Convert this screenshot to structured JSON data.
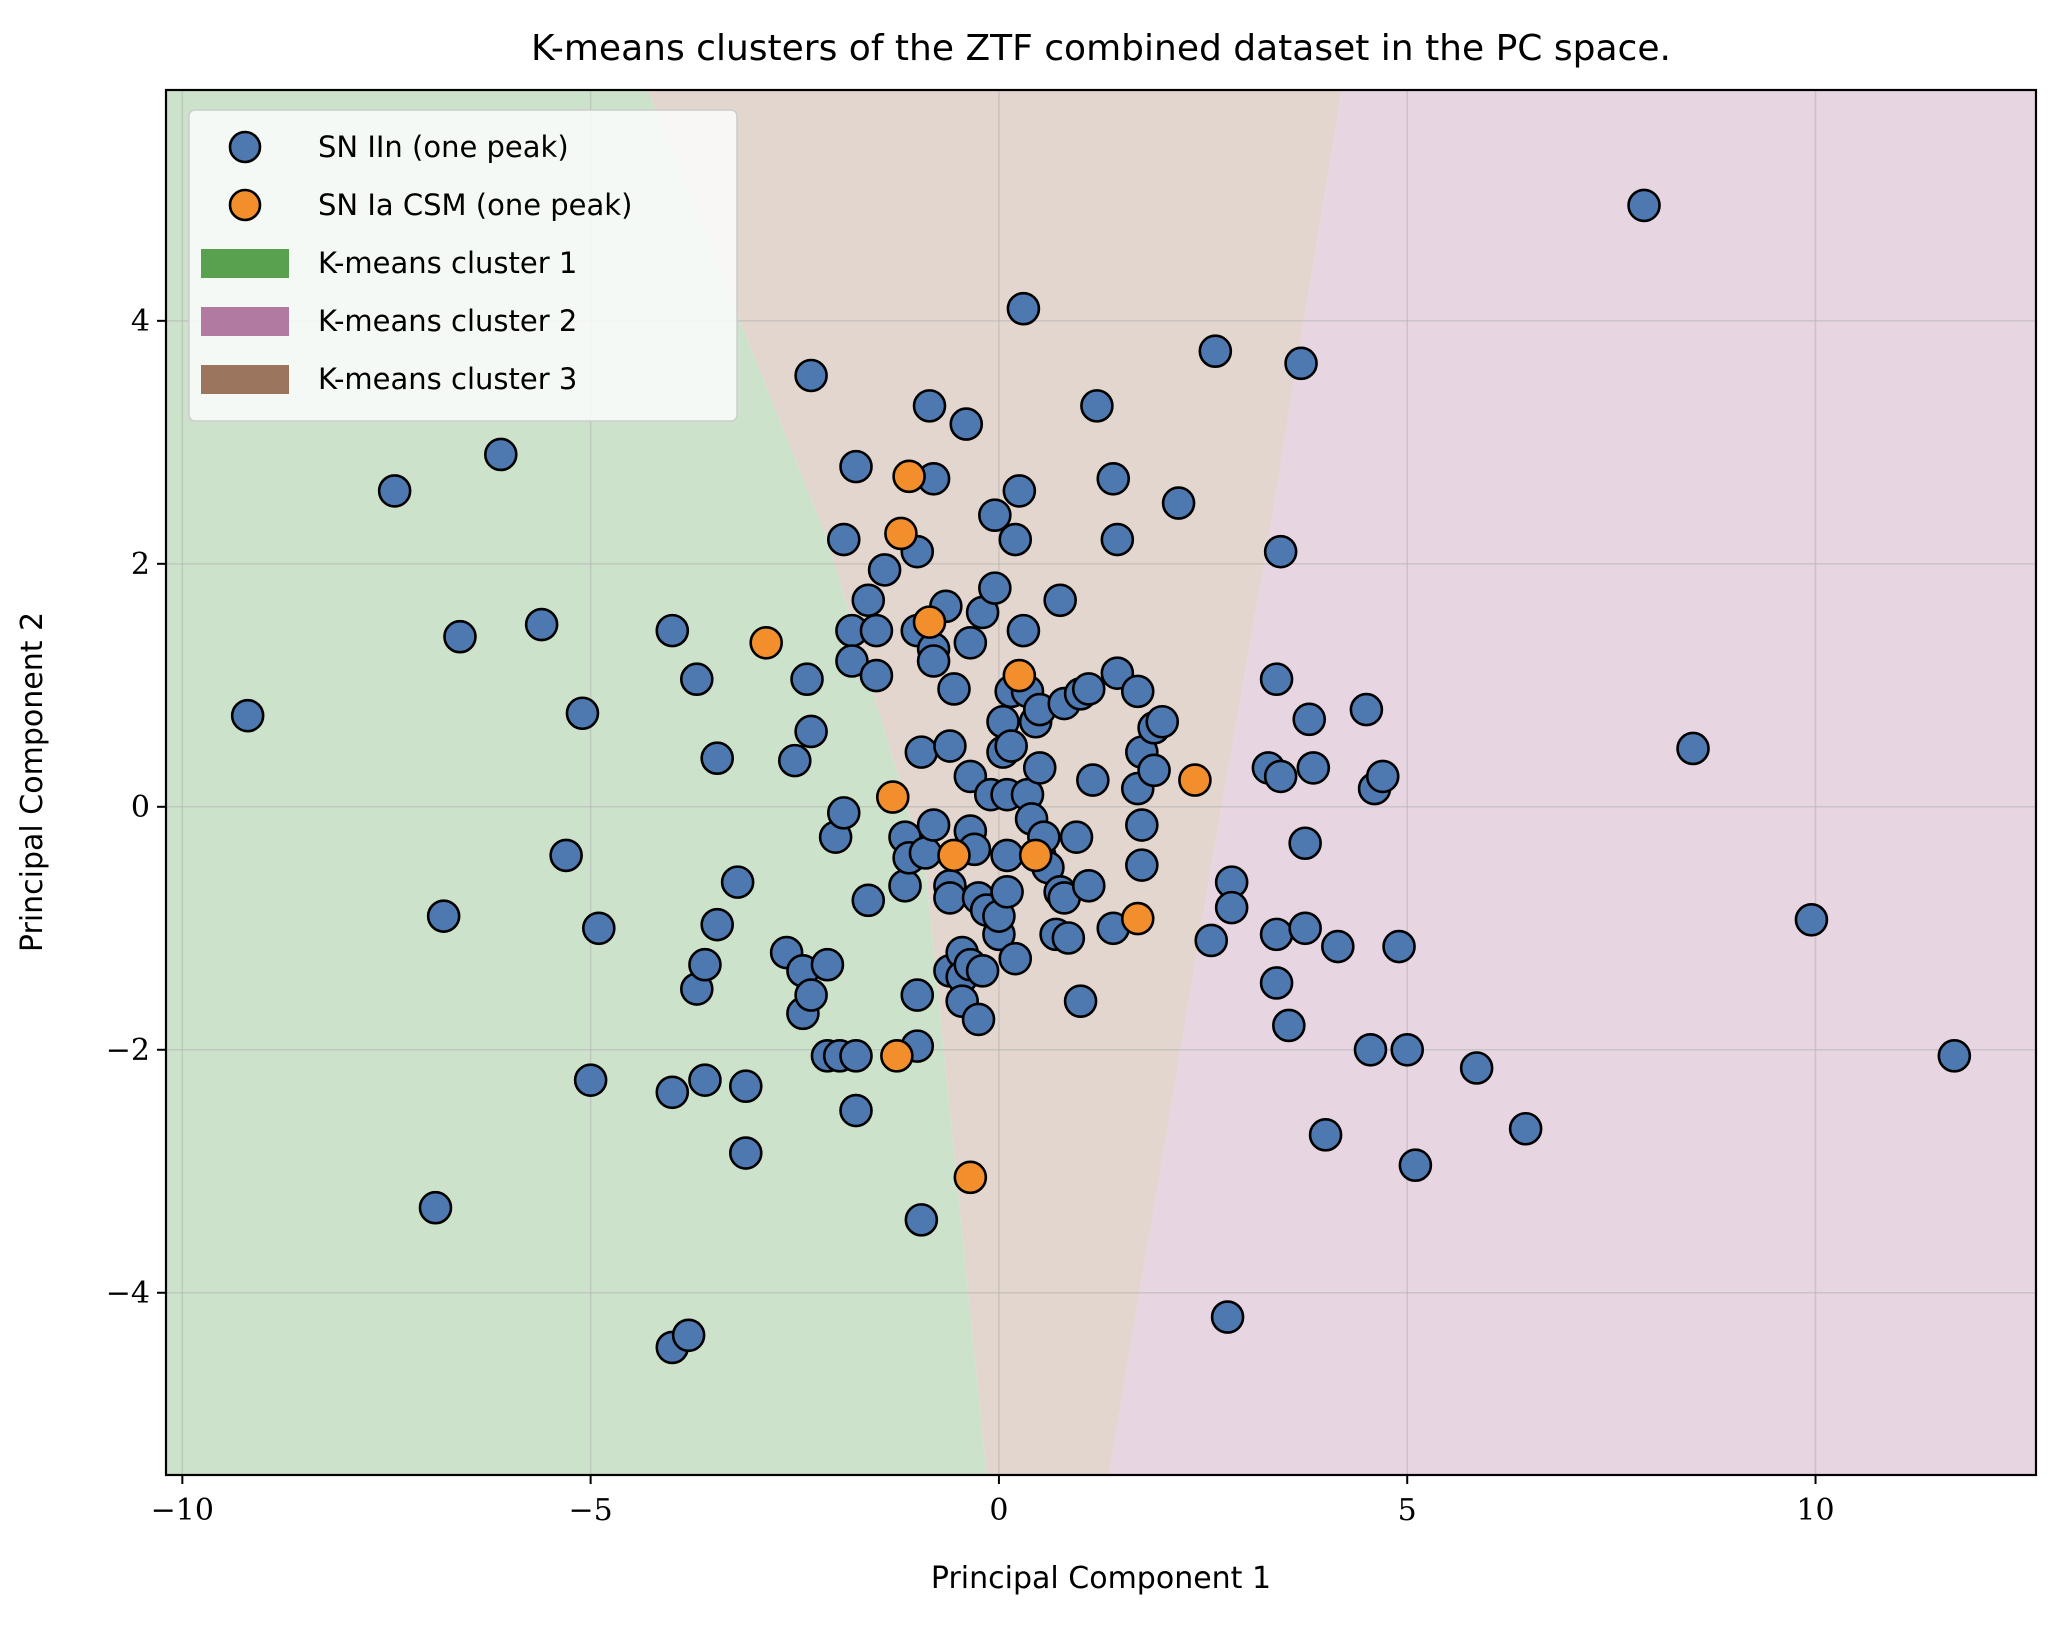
{
  "chart_data": {
    "type": "scatter",
    "title": "K-means clusters of the ZTF combined dataset in the PC space.",
    "xlabel": "Principal Component 1",
    "ylabel": "Principal Component 2",
    "xlim": [
      -10.2,
      12.7
    ],
    "ylim": [
      -5.5,
      5.9
    ],
    "xticks": [
      -10,
      -5,
      0,
      5,
      10
    ],
    "yticks": [
      -4,
      -2,
      0,
      2,
      4
    ],
    "xtick_labels": [
      "−10",
      "−5",
      "0",
      "5",
      "10"
    ],
    "ytick_labels": [
      "−4",
      "−2",
      "0",
      "2",
      "4"
    ],
    "grid": true,
    "legend_position": "top-left",
    "legend": [
      {
        "label": "SN IIn (one peak)",
        "kind": "marker",
        "color": "#4e78b0"
      },
      {
        "label": "SN Ia CSM (one peak)",
        "kind": "marker",
        "color": "#f28e2b"
      },
      {
        "label": "K-means cluster 1",
        "kind": "patch",
        "color": "#59a14f"
      },
      {
        "label": "K-means cluster 2",
        "kind": "patch",
        "color": "#b07aa1"
      },
      {
        "label": "K-means cluster 3",
        "kind": "patch",
        "color": "#9c755f"
      }
    ],
    "regions": [
      {
        "name": "K-means cluster 1",
        "color": "#cde2cb",
        "polygon": [
          [
            -10.2,
            5.9
          ],
          [
            -4.3,
            5.9
          ],
          [
            -2.1,
            2.2
          ],
          [
            -0.9,
            -0.5
          ],
          [
            -0.15,
            -5.5
          ],
          [
            -10.2,
            -5.5
          ]
        ]
      },
      {
        "name": "K-means cluster 3",
        "color": "#e2d6ce",
        "polygon": [
          [
            -4.3,
            5.9
          ],
          [
            4.2,
            5.9
          ],
          [
            3.3,
            2.2
          ],
          [
            2.6,
            -0.5
          ],
          [
            1.35,
            -5.5
          ],
          [
            -0.15,
            -5.5
          ],
          [
            -0.9,
            -0.5
          ],
          [
            -2.1,
            2.2
          ]
        ]
      },
      {
        "name": "K-means cluster 2",
        "color": "#e7d5e1",
        "polygon": [
          [
            4.2,
            5.9
          ],
          [
            12.7,
            5.9
          ],
          [
            12.7,
            -5.5
          ],
          [
            1.35,
            -5.5
          ],
          [
            2.6,
            -0.5
          ],
          [
            3.3,
            2.2
          ]
        ]
      }
    ],
    "series": [
      {
        "name": "SN IIn (one peak)",
        "color": "#4e78b0",
        "points": [
          [
            -9.2,
            0.75
          ],
          [
            -7.4,
            2.6
          ],
          [
            -6.9,
            -3.3
          ],
          [
            -6.8,
            -0.9
          ],
          [
            -6.6,
            1.4
          ],
          [
            -6.1,
            2.9
          ],
          [
            -5.6,
            1.5
          ],
          [
            -5.3,
            -0.4
          ],
          [
            -5.1,
            0.77
          ],
          [
            -5.0,
            -2.25
          ],
          [
            -4.9,
            -1.0
          ],
          [
            -4.0,
            1.45
          ],
          [
            -4.0,
            -2.35
          ],
          [
            -4.0,
            -4.45
          ],
          [
            -3.8,
            -4.35
          ],
          [
            -3.7,
            -1.5
          ],
          [
            -3.7,
            1.05
          ],
          [
            -3.6,
            -1.3
          ],
          [
            -3.6,
            -2.25
          ],
          [
            -3.45,
            0.4
          ],
          [
            -3.45,
            -0.97
          ],
          [
            -3.2,
            -0.62
          ],
          [
            -3.1,
            -2.3
          ],
          [
            -3.1,
            -2.85
          ],
          [
            -2.6,
            -1.2
          ],
          [
            -2.5,
            0.38
          ],
          [
            -2.4,
            -1.35
          ],
          [
            -2.4,
            -1.7
          ],
          [
            -2.35,
            1.05
          ],
          [
            -2.3,
            3.55
          ],
          [
            -2.3,
            0.62
          ],
          [
            -2.3,
            -1.55
          ],
          [
            -2.1,
            -2.05
          ],
          [
            -2.1,
            -1.3
          ],
          [
            -2.0,
            -0.25
          ],
          [
            -1.95,
            -2.05
          ],
          [
            -1.9,
            -0.05
          ],
          [
            -1.9,
            2.2
          ],
          [
            -1.8,
            1.45
          ],
          [
            -1.8,
            1.2
          ],
          [
            -1.75,
            -2.05
          ],
          [
            -1.75,
            -2.5
          ],
          [
            -1.75,
            2.8
          ],
          [
            -1.6,
            1.7
          ],
          [
            -1.6,
            -0.77
          ],
          [
            -1.5,
            1.45
          ],
          [
            -1.5,
            1.08
          ],
          [
            -1.4,
            1.95
          ],
          [
            -1.15,
            -0.25
          ],
          [
            -1.15,
            -0.65
          ],
          [
            -1.1,
            -0.42
          ],
          [
            -1.0,
            2.1
          ],
          [
            -1.0,
            1.45
          ],
          [
            -1.0,
            -1.55
          ],
          [
            -1.0,
            -1.97
          ],
          [
            -0.95,
            -3.4
          ],
          [
            -0.95,
            0.45
          ],
          [
            -0.9,
            -0.38
          ],
          [
            -0.85,
            3.3
          ],
          [
            -0.8,
            2.7
          ],
          [
            -0.8,
            1.3
          ],
          [
            -0.8,
            1.2
          ],
          [
            -0.8,
            -0.15
          ],
          [
            -0.65,
            1.65
          ],
          [
            -0.6,
            -0.65
          ],
          [
            -0.6,
            -0.75
          ],
          [
            -0.6,
            -1.35
          ],
          [
            -0.6,
            0.5
          ],
          [
            -0.55,
            0.97
          ],
          [
            -0.45,
            -1.2
          ],
          [
            -0.45,
            -1.4
          ],
          [
            -0.45,
            -1.6
          ],
          [
            -0.4,
            3.15
          ],
          [
            -0.35,
            1.35
          ],
          [
            -0.35,
            -0.2
          ],
          [
            -0.35,
            -1.3
          ],
          [
            -0.35,
            0.25
          ],
          [
            -0.3,
            -0.35
          ],
          [
            -0.25,
            -0.75
          ],
          [
            -0.25,
            -1.75
          ],
          [
            -0.2,
            -1.35
          ],
          [
            -0.2,
            1.6
          ],
          [
            -0.15,
            -0.85
          ],
          [
            -0.1,
            0.1
          ],
          [
            -0.05,
            2.4
          ],
          [
            -0.05,
            1.8
          ],
          [
            0.0,
            -1.05
          ],
          [
            0.0,
            -0.9
          ],
          [
            0.05,
            0.7
          ],
          [
            0.05,
            0.45
          ],
          [
            0.1,
            -0.4
          ],
          [
            0.1,
            0.1
          ],
          [
            0.1,
            -0.7
          ],
          [
            0.15,
            0.5
          ],
          [
            0.15,
            0.95
          ],
          [
            0.2,
            2.2
          ],
          [
            0.2,
            -1.25
          ],
          [
            0.25,
            2.6
          ],
          [
            0.3,
            4.1
          ],
          [
            0.3,
            1.45
          ],
          [
            0.35,
            0.95
          ],
          [
            0.35,
            0.1
          ],
          [
            0.4,
            -0.1
          ],
          [
            0.45,
            0.7
          ],
          [
            0.5,
            0.32
          ],
          [
            0.5,
            0.8
          ],
          [
            0.5,
            -0.4
          ],
          [
            0.55,
            -0.25
          ],
          [
            0.6,
            -0.5
          ],
          [
            0.7,
            -1.05
          ],
          [
            0.75,
            1.7
          ],
          [
            0.75,
            -0.7
          ],
          [
            0.8,
            0.85
          ],
          [
            0.8,
            -0.75
          ],
          [
            0.85,
            -1.08
          ],
          [
            0.95,
            -0.25
          ],
          [
            1.0,
            0.93
          ],
          [
            1.0,
            -1.6
          ],
          [
            1.1,
            0.97
          ],
          [
            1.1,
            -0.65
          ],
          [
            1.15,
            0.22
          ],
          [
            1.2,
            3.3
          ],
          [
            1.4,
            2.7
          ],
          [
            1.4,
            -1.0
          ],
          [
            1.45,
            1.1
          ],
          [
            1.45,
            2.2
          ],
          [
            1.7,
            0.95
          ],
          [
            1.7,
            0.15
          ],
          [
            1.75,
            0.45
          ],
          [
            1.75,
            -0.15
          ],
          [
            1.75,
            -0.48
          ],
          [
            1.9,
            0.65
          ],
          [
            1.9,
            0.3
          ],
          [
            2.0,
            0.7
          ],
          [
            2.2,
            2.5
          ],
          [
            2.6,
            -1.1
          ],
          [
            2.65,
            3.75
          ],
          [
            2.8,
            -4.2
          ],
          [
            2.85,
            -0.62
          ],
          [
            2.85,
            -0.83
          ],
          [
            3.3,
            0.32
          ],
          [
            3.4,
            1.05
          ],
          [
            3.4,
            -1.05
          ],
          [
            3.4,
            -1.45
          ],
          [
            3.45,
            2.1
          ],
          [
            3.45,
            0.25
          ],
          [
            3.55,
            -1.8
          ],
          [
            3.7,
            3.65
          ],
          [
            3.75,
            -0.3
          ],
          [
            3.75,
            -1.0
          ],
          [
            3.8,
            0.72
          ],
          [
            3.85,
            0.32
          ],
          [
            4.0,
            -2.7
          ],
          [
            4.15,
            -1.15
          ],
          [
            4.5,
            0.8
          ],
          [
            4.55,
            -2.0
          ],
          [
            4.6,
            0.15
          ],
          [
            4.7,
            0.25
          ],
          [
            4.9,
            -1.15
          ],
          [
            5.0,
            -2.0
          ],
          [
            5.1,
            -2.95
          ],
          [
            5.85,
            -2.15
          ],
          [
            6.45,
            -2.65
          ],
          [
            7.9,
            4.95
          ],
          [
            8.5,
            0.48
          ],
          [
            9.95,
            -0.93
          ],
          [
            11.7,
            -2.05
          ]
        ]
      },
      {
        "name": "SN Ia CSM (one peak)",
        "color": "#f28e2b",
        "points": [
          [
            -2.85,
            1.35
          ],
          [
            -1.3,
            0.08
          ],
          [
            -1.25,
            -2.05
          ],
          [
            -1.2,
            2.25
          ],
          [
            -1.1,
            2.72
          ],
          [
            -0.85,
            1.52
          ],
          [
            -0.55,
            -0.4
          ],
          [
            -0.35,
            -3.05
          ],
          [
            0.25,
            1.08
          ],
          [
            0.45,
            -0.4
          ],
          [
            1.7,
            -0.92
          ],
          [
            2.4,
            0.22
          ]
        ]
      }
    ]
  }
}
